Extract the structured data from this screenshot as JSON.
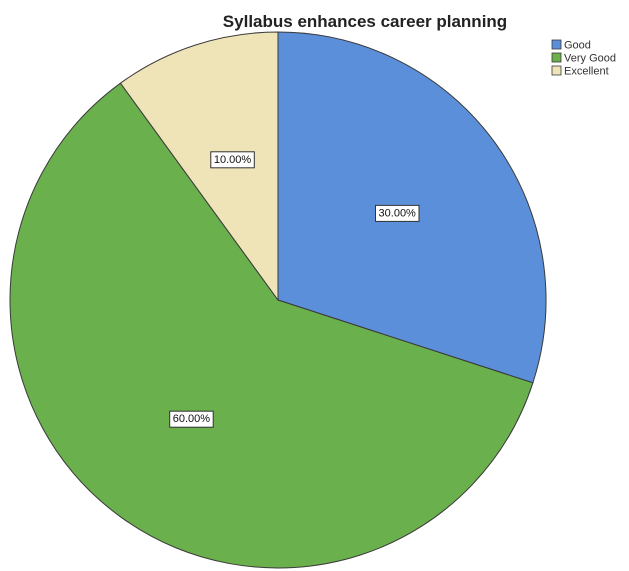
{
  "chart_data": {
    "type": "pie",
    "title": "Syllabus enhances career planning",
    "categories": [
      "Good",
      "Very Good",
      "Excellent"
    ],
    "values": [
      30,
      60,
      10
    ],
    "labels": [
      "30.00%",
      "60.00%",
      "10.00%"
    ],
    "colors": [
      "#5b8fd9",
      "#6ab04c",
      "#efe3b8"
    ],
    "start_angle_deg": 0,
    "direction": "clockwise",
    "legend_position": "top-right"
  }
}
